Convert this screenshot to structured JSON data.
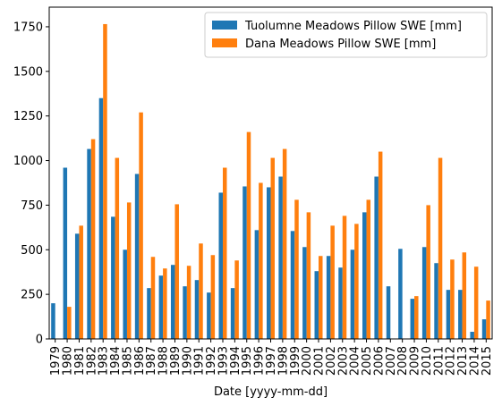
{
  "chart_data": {
    "type": "bar",
    "title": "",
    "xlabel": "Date [yyyy-mm-dd]",
    "ylabel": "",
    "ylim": [
      0,
      1860
    ],
    "yticks": [
      0,
      250,
      500,
      750,
      1000,
      1250,
      1500,
      1750
    ],
    "grid": false,
    "legend": "top-right",
    "categories": [
      "1979",
      "1980",
      "1981",
      "1982",
      "1983",
      "1984",
      "1985",
      "1986",
      "1987",
      "1988",
      "1989",
      "1990",
      "1991",
      "1992",
      "1993",
      "1994",
      "1995",
      "1996",
      "1997",
      "1998",
      "1999",
      "2000",
      "2001",
      "2002",
      "2003",
      "2004",
      "2005",
      "2006",
      "2007",
      "2008",
      "2009",
      "2010",
      "2011",
      "2012",
      "2013",
      "2014",
      "2015"
    ],
    "series": [
      {
        "name": "Tuolumne Meadows Pillow SWE [mm]",
        "color": "#1f77b4",
        "values": [
          200,
          960,
          590,
          1065,
          1350,
          685,
          500,
          925,
          285,
          355,
          415,
          295,
          330,
          260,
          820,
          285,
          855,
          610,
          850,
          910,
          605,
          515,
          380,
          465,
          400,
          500,
          710,
          910,
          295,
          505,
          225,
          515,
          425,
          275,
          275,
          40,
          110
        ]
      },
      {
        "name": "Dana Meadows Pillow SWE [mm]",
        "color": "#ff7f0e",
        "values": [
          0,
          180,
          635,
          1120,
          1765,
          1015,
          765,
          1270,
          460,
          395,
          755,
          410,
          535,
          470,
          960,
          440,
          1160,
          875,
          1015,
          1065,
          780,
          710,
          465,
          635,
          690,
          645,
          780,
          1050,
          0,
          0,
          240,
          750,
          1015,
          445,
          485,
          405,
          215
        ]
      }
    ]
  }
}
